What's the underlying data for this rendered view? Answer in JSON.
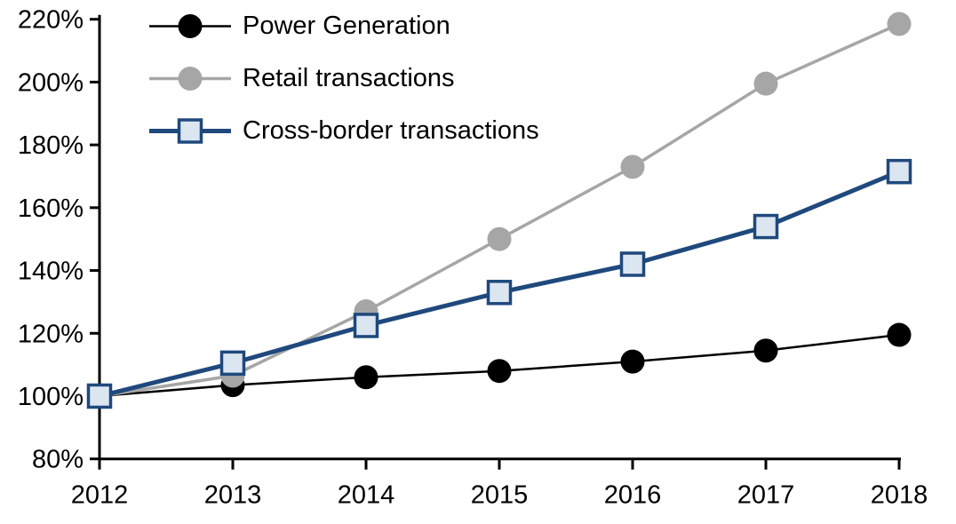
{
  "chart_data": {
    "type": "line",
    "title": "",
    "xlabel": "",
    "ylabel": "",
    "x": [
      2012,
      2013,
      2014,
      2015,
      2016,
      2017,
      2018
    ],
    "x_tick_labels": [
      "2012",
      "2013",
      "2014",
      "2015",
      "2016",
      "2017",
      "2018"
    ],
    "series": [
      {
        "name": "Power Generation",
        "values": [
          100,
          103.5,
          106,
          108,
          111,
          114.5,
          119.5
        ],
        "color": "#000000",
        "marker": "circle",
        "marker_fill": "#000000",
        "line_width": 2.5
      },
      {
        "name": "Retail transactions",
        "values": [
          100,
          106.5,
          127,
          150,
          173,
          199.5,
          218.5
        ],
        "color": "#a6a6a6",
        "marker": "circle",
        "marker_fill": "#a6a6a6",
        "line_width": 3.5
      },
      {
        "name": "Cross-border transactions",
        "values": [
          100,
          110.5,
          122.5,
          133,
          142,
          154,
          171.5
        ],
        "color": "#1f497d",
        "marker": "square",
        "marker_fill": "#dce6f1",
        "line_width": 5
      }
    ],
    "ylim": [
      80,
      220
    ],
    "y_tick_step": 20,
    "y_tick_labels": [
      "80%",
      "100%",
      "120%",
      "140%",
      "160%",
      "180%",
      "200%",
      "220%"
    ],
    "y_tick_format": "percent",
    "grid": false,
    "legend_position": "top-left",
    "axis_color": "#000000",
    "text_color": "#000000"
  }
}
